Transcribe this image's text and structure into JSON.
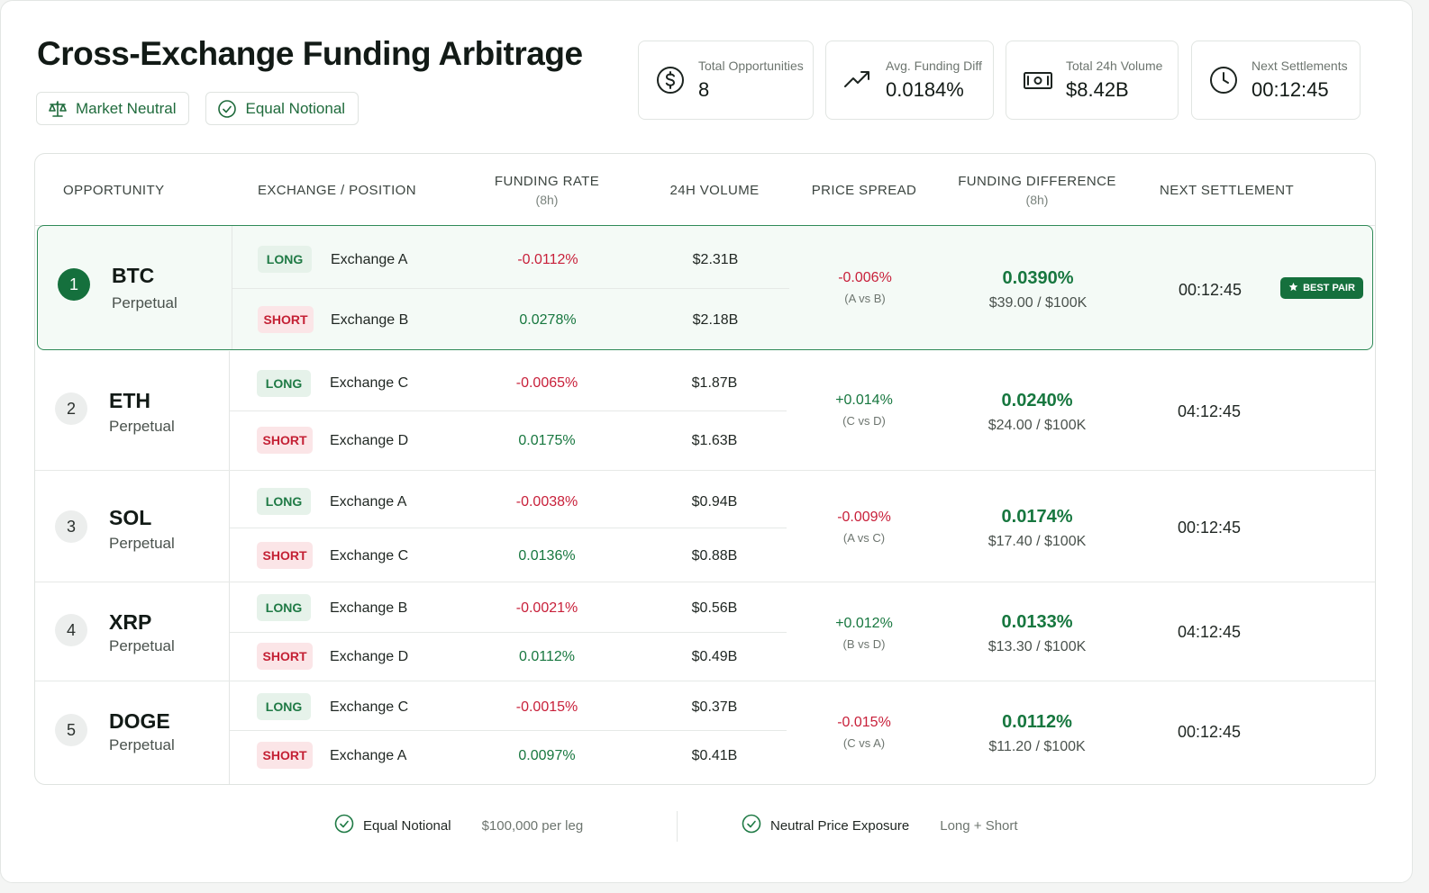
{
  "header": {
    "title": "Cross-Exchange Funding Arbitrage",
    "chips": [
      {
        "label": "Market Neutral",
        "icon": "balance-scale-icon"
      },
      {
        "label": "Equal Notional",
        "icon": "check-circle-icon"
      }
    ]
  },
  "stats": [
    {
      "label": "Total Opportunities",
      "value": "8",
      "icon": "dollar-circle-icon"
    },
    {
      "label": "Avg. Funding Diff",
      "value": "0.0184%",
      "icon": "trend-up-icon"
    },
    {
      "label": "Total 24h Volume",
      "value": "$8.42B",
      "icon": "banknote-icon"
    },
    {
      "label": "Next Settlements",
      "value": "00:12:45",
      "icon": "clock-icon"
    }
  ],
  "table": {
    "columns": {
      "opportunity": "OPPORTUNITY",
      "exchange_position": "EXCHANGE / POSITION",
      "funding_rate": "FUNDING RATE",
      "funding_rate_sub": "(8h)",
      "volume": "24H VOLUME",
      "price_spread": "PRICE SPREAD",
      "funding_diff": "FUNDING DIFFERENCE",
      "funding_diff_sub": "(8h)",
      "next_settlement": "NEXT SETTLEMENT"
    },
    "best_badge": "BEST PAIR",
    "rows": [
      {
        "rank": "1",
        "symbol": "BTC",
        "kind": "Perpetual",
        "long": {
          "tag": "LONG",
          "exchange": "Exchange A",
          "rate": "-0.0112%",
          "volume": "$2.31B"
        },
        "short": {
          "tag": "SHORT",
          "exchange": "Exchange B",
          "rate": "0.0278%",
          "volume": "$2.18B"
        },
        "spread": "-0.006%",
        "spread_pair": "(A vs B)",
        "funding_diff": "0.0390%",
        "per_100k": "$39.00 / $100K",
        "settlement": "00:12:45"
      },
      {
        "rank": "2",
        "symbol": "ETH",
        "kind": "Perpetual",
        "long": {
          "tag": "LONG",
          "exchange": "Exchange C",
          "rate": "-0.0065%",
          "volume": "$1.87B"
        },
        "short": {
          "tag": "SHORT",
          "exchange": "Exchange D",
          "rate": "0.0175%",
          "volume": "$1.63B"
        },
        "spread": "+0.014%",
        "spread_pair": "(C vs D)",
        "funding_diff": "0.0240%",
        "per_100k": "$24.00 / $100K",
        "settlement": "04:12:45"
      },
      {
        "rank": "3",
        "symbol": "SOL",
        "kind": "Perpetual",
        "long": {
          "tag": "LONG",
          "exchange": "Exchange A",
          "rate": "-0.0038%",
          "volume": "$0.94B"
        },
        "short": {
          "tag": "SHORT",
          "exchange": "Exchange C",
          "rate": "0.0136%",
          "volume": "$0.88B"
        },
        "spread": "-0.009%",
        "spread_pair": "(A vs C)",
        "funding_diff": "0.0174%",
        "per_100k": "$17.40 / $100K",
        "settlement": "00:12:45"
      },
      {
        "rank": "4",
        "symbol": "XRP",
        "kind": "Perpetual",
        "long": {
          "tag": "LONG",
          "exchange": "Exchange B",
          "rate": "-0.0021%",
          "volume": "$0.56B"
        },
        "short": {
          "tag": "SHORT",
          "exchange": "Exchange D",
          "rate": "0.0112%",
          "volume": "$0.49B"
        },
        "spread": "+0.012%",
        "spread_pair": "(B vs D)",
        "funding_diff": "0.0133%",
        "per_100k": "$13.30 / $100K",
        "settlement": "04:12:45"
      },
      {
        "rank": "5",
        "symbol": "DOGE",
        "kind": "Perpetual",
        "long": {
          "tag": "LONG",
          "exchange": "Exchange C",
          "rate": "-0.0015%",
          "volume": "$0.37B"
        },
        "short": {
          "tag": "SHORT",
          "exchange": "Exchange A",
          "rate": "0.0097%",
          "volume": "$0.41B"
        },
        "spread": "-0.015%",
        "spread_pair": "(C vs A)",
        "funding_diff": "0.0112%",
        "per_100k": "$11.20 / $100K",
        "settlement": "00:12:45"
      }
    ]
  },
  "footer": [
    {
      "title": "Equal Notional",
      "detail": "$100,000 per leg",
      "icon": "check-circle-icon"
    },
    {
      "title": "Neutral Price Exposure",
      "detail": "Long + Short",
      "icon": "check-circle-icon"
    }
  ],
  "colors": {
    "accent_green": "#15703d",
    "positive": "#17773f",
    "negative": "#c8203a",
    "long_bg": "#e6f2ea",
    "short_bg": "#fbe5e7"
  }
}
